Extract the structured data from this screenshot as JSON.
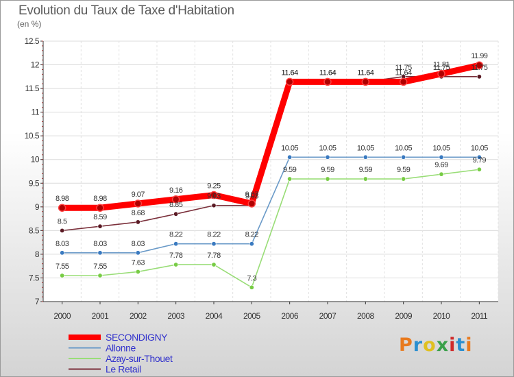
{
  "chart_data": {
    "type": "line",
    "title": "Evolution du Taux de Taxe d'Habitation",
    "subtitle": "(en %)",
    "categories": [
      "2000",
      "2001",
      "2002",
      "2003",
      "2004",
      "2005",
      "2006",
      "2007",
      "2008",
      "2009",
      "2010",
      "2011"
    ],
    "ylim": [
      7,
      12.5
    ],
    "yticks": [
      7,
      7.5,
      8,
      8.5,
      9,
      9.5,
      10,
      10.5,
      11,
      11.5,
      12,
      12.5
    ],
    "grid": "horizontal",
    "legend_position": "bottom-left",
    "series": [
      {
        "name": "SECONDIGNY",
        "color": "#ff0000",
        "marker_color": "#b00000",
        "values": [
          8.98,
          8.98,
          9.07,
          9.16,
          9.25,
          9.07,
          11.64,
          11.64,
          11.64,
          11.64,
          11.81,
          11.99
        ]
      },
      {
        "name": "Allonne",
        "color": "#6a9ac8",
        "marker_color": "#3a7ac0",
        "values": [
          8.03,
          8.03,
          8.03,
          8.22,
          8.22,
          8.22,
          10.05,
          10.05,
          10.05,
          10.05,
          10.05,
          10.05
        ]
      },
      {
        "name": "Azay-sur-Thouet",
        "color": "#99dd77",
        "marker_color": "#77cc44",
        "values": [
          7.55,
          7.55,
          7.63,
          7.78,
          7.78,
          7.3,
          9.59,
          9.59,
          9.59,
          9.59,
          9.69,
          9.79
        ]
      },
      {
        "name": "Le Retail",
        "color": "#7a2f3a",
        "marker_color": "#5a1a24",
        "values": [
          8.5,
          8.59,
          8.68,
          8.85,
          9.03,
          9.03,
          11.64,
          11.64,
          11.64,
          11.75,
          11.75,
          11.75
        ]
      }
    ]
  },
  "logo": {
    "text": "Proxiti",
    "colors": [
      "#e87a1e",
      "#2a8fd0",
      "#e0c020",
      "#3aa04a",
      "#d02a2a",
      "#2a8fd0",
      "#e87a1e"
    ]
  }
}
